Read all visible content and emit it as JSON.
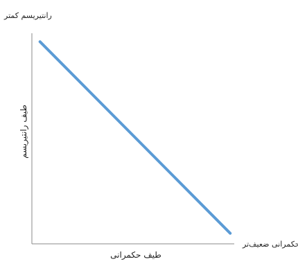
{
  "chart_data": {
    "type": "line",
    "title": "",
    "xlabel": "طیف حکمرانی",
    "ylabel": "طیف رانتیریسم",
    "x_axis_end_label": "حکمرانی ضعیف‌تر",
    "y_axis_end_label": "رانتیریسم کمتر",
    "xlim": [
      0,
      1
    ],
    "ylim": [
      0,
      1
    ],
    "grid": false,
    "legend": "none",
    "series": [
      {
        "x": [
          0.04,
          0.98
        ],
        "y": [
          0.96,
          0.05
        ],
        "color": "#5b9bd5"
      }
    ],
    "axis_color": "#8a8a8a"
  }
}
